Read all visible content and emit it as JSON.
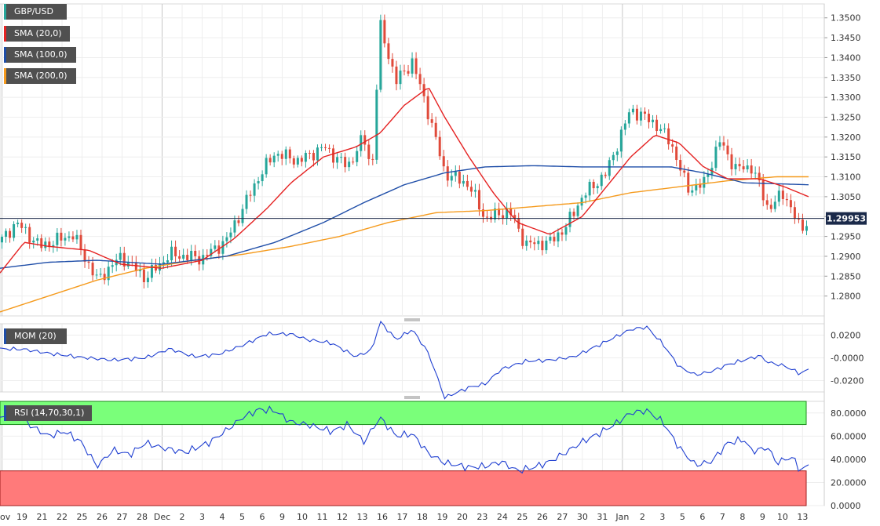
{
  "chart_data": {
    "type": "candlestick",
    "symbol": "GBP/USD",
    "price_panel": {
      "ylim": [
        1.275,
        1.3535
      ],
      "ticks": [
        "1.2800",
        "1.2850",
        "1.2900",
        "1.2950",
        "1.3000",
        "1.3050",
        "1.3100",
        "1.3150",
        "1.3200",
        "1.3250",
        "1.3300",
        "1.3350",
        "1.3400",
        "1.3450",
        "1.3500"
      ],
      "last_price": "1.29953",
      "legend": [
        {
          "label": "GBP/USD",
          "color": "#26a69a"
        },
        {
          "label": "SMA (20,0)",
          "color": "#e52222"
        },
        {
          "label": "SMA (100,0)",
          "color": "#1f4ea8"
        },
        {
          "label": "SMA (200,0)",
          "color": "#f59a1c"
        }
      ],
      "close_keypoints": [
        [
          0,
          1.2935
        ],
        [
          0.02,
          1.2985
        ],
        [
          0.05,
          1.2925
        ],
        [
          0.09,
          1.2955
        ],
        [
          0.12,
          1.284
        ],
        [
          0.15,
          1.29
        ],
        [
          0.18,
          1.2845
        ],
        [
          0.21,
          1.2905
        ],
        [
          0.25,
          1.2895
        ],
        [
          0.28,
          1.294
        ],
        [
          0.3,
          1.302
        ],
        [
          0.32,
          1.31
        ],
        [
          0.34,
          1.316
        ],
        [
          0.37,
          1.314
        ],
        [
          0.4,
          1.3175
        ],
        [
          0.43,
          1.3125
        ],
        [
          0.45,
          1.32
        ],
        [
          0.46,
          1.311
        ],
        [
          0.47,
          1.348
        ],
        [
          0.49,
          1.334
        ],
        [
          0.51,
          1.339
        ],
        [
          0.53,
          1.326
        ],
        [
          0.55,
          1.311
        ],
        [
          0.58,
          1.308
        ],
        [
          0.6,
          1.2995
        ],
        [
          0.63,
          1.3015
        ],
        [
          0.65,
          1.293
        ],
        [
          0.68,
          1.2935
        ],
        [
          0.7,
          1.2975
        ],
        [
          0.72,
          1.305
        ],
        [
          0.75,
          1.311
        ],
        [
          0.78,
          1.327
        ],
        [
          0.81,
          1.3235
        ],
        [
          0.83,
          1.3185
        ],
        [
          0.85,
          1.307
        ],
        [
          0.87,
          1.308
        ],
        [
          0.89,
          1.319
        ],
        [
          0.91,
          1.312
        ],
        [
          0.93,
          1.3125
        ],
        [
          0.95,
          1.302
        ],
        [
          0.97,
          1.306
        ],
        [
          0.99,
          1.2965
        ],
        [
          1.0,
          1.2995
        ]
      ],
      "sma20_keypoints": [
        [
          0,
          1.2858
        ],
        [
          0.03,
          1.2935
        ],
        [
          0.06,
          1.2925
        ],
        [
          0.11,
          1.2915
        ],
        [
          0.15,
          1.288
        ],
        [
          0.2,
          1.287
        ],
        [
          0.25,
          1.289
        ],
        [
          0.29,
          1.2945
        ],
        [
          0.33,
          1.302
        ],
        [
          0.36,
          1.3085
        ],
        [
          0.4,
          1.315
        ],
        [
          0.44,
          1.3175
        ],
        [
          0.47,
          1.321
        ],
        [
          0.5,
          1.328
        ],
        [
          0.53,
          1.3325
        ],
        [
          0.55,
          1.325
        ],
        [
          0.58,
          1.315
        ],
        [
          0.61,
          1.306
        ],
        [
          0.64,
          1.2985
        ],
        [
          0.68,
          1.2955
        ],
        [
          0.72,
          1.3
        ],
        [
          0.75,
          1.3075
        ],
        [
          0.78,
          1.315
        ],
        [
          0.81,
          1.3205
        ],
        [
          0.84,
          1.3185
        ],
        [
          0.87,
          1.3125
        ],
        [
          0.9,
          1.3095
        ],
        [
          0.94,
          1.3095
        ],
        [
          0.97,
          1.3075
        ],
        [
          1.0,
          1.305
        ]
      ],
      "sma100_keypoints": [
        [
          0,
          1.287
        ],
        [
          0.06,
          1.2885
        ],
        [
          0.12,
          1.289
        ],
        [
          0.2,
          1.288
        ],
        [
          0.28,
          1.29
        ],
        [
          0.34,
          1.2935
        ],
        [
          0.4,
          1.2985
        ],
        [
          0.45,
          1.3035
        ],
        [
          0.5,
          1.308
        ],
        [
          0.55,
          1.311
        ],
        [
          0.6,
          1.3125
        ],
        [
          0.66,
          1.3128
        ],
        [
          0.72,
          1.3125
        ],
        [
          0.78,
          1.3125
        ],
        [
          0.83,
          1.3125
        ],
        [
          0.87,
          1.311
        ],
        [
          0.92,
          1.3085
        ],
        [
          1.0,
          1.308
        ]
      ],
      "sma200_keypoints": [
        [
          0,
          1.276
        ],
        [
          0.06,
          1.28
        ],
        [
          0.12,
          1.284
        ],
        [
          0.18,
          1.287
        ],
        [
          0.24,
          1.289
        ],
        [
          0.3,
          1.2905
        ],
        [
          0.36,
          1.2925
        ],
        [
          0.42,
          1.295
        ],
        [
          0.48,
          1.2985
        ],
        [
          0.54,
          1.301
        ],
        [
          0.6,
          1.3015
        ],
        [
          0.66,
          1.3025
        ],
        [
          0.72,
          1.3035
        ],
        [
          0.78,
          1.306
        ],
        [
          0.84,
          1.3075
        ],
        [
          0.9,
          1.309
        ],
        [
          0.96,
          1.31
        ],
        [
          1.0,
          1.31
        ]
      ]
    },
    "mom_panel": {
      "label": "MOM (20)",
      "ylim": [
        -0.03,
        0.03
      ],
      "ticks": [
        "0.0200",
        "-0.0000",
        "-0.0200"
      ],
      "keypoints": [
        [
          0,
          0.008
        ],
        [
          0.03,
          0.0075
        ],
        [
          0.06,
          0.004
        ],
        [
          0.1,
          0.0005
        ],
        [
          0.14,
          -0.002
        ],
        [
          0.18,
          0.0
        ],
        [
          0.21,
          0.008
        ],
        [
          0.24,
          0.001
        ],
        [
          0.27,
          0.003
        ],
        [
          0.3,
          0.011
        ],
        [
          0.33,
          0.021
        ],
        [
          0.36,
          0.021
        ],
        [
          0.38,
          0.016
        ],
        [
          0.41,
          0.013
        ],
        [
          0.44,
          0.001
        ],
        [
          0.46,
          0.007
        ],
        [
          0.47,
          0.032
        ],
        [
          0.49,
          0.016
        ],
        [
          0.51,
          0.025
        ],
        [
          0.53,
          0.004
        ],
        [
          0.55,
          -0.035
        ],
        [
          0.58,
          -0.026
        ],
        [
          0.6,
          -0.023
        ],
        [
          0.62,
          -0.01
        ],
        [
          0.65,
          -0.003
        ],
        [
          0.68,
          -0.002
        ],
        [
          0.71,
          0.001
        ],
        [
          0.74,
          0.011
        ],
        [
          0.76,
          0.018
        ],
        [
          0.78,
          0.025
        ],
        [
          0.8,
          0.027
        ],
        [
          0.82,
          0.012
        ],
        [
          0.84,
          -0.008
        ],
        [
          0.86,
          -0.015
        ],
        [
          0.88,
          -0.012
        ],
        [
          0.9,
          -0.006
        ],
        [
          0.92,
          -0.002
        ],
        [
          0.94,
          0.002
        ],
        [
          0.95,
          -0.004
        ],
        [
          0.97,
          -0.007
        ],
        [
          0.99,
          -0.014
        ],
        [
          1.0,
          -0.01
        ]
      ]
    },
    "rsi_panel": {
      "label": "RSI (14,70,30,1)",
      "ylim": [
        0,
        90
      ],
      "overbought": 70,
      "oversold": 30,
      "ticks": [
        "80.0000",
        "60.0000",
        "40.0000",
        "20.0000",
        "0.0000"
      ],
      "keypoints": [
        [
          0,
          75
        ],
        [
          0.02,
          80
        ],
        [
          0.04,
          68
        ],
        [
          0.06,
          60
        ],
        [
          0.08,
          64
        ],
        [
          0.1,
          55
        ],
        [
          0.12,
          34
        ],
        [
          0.14,
          48
        ],
        [
          0.16,
          44
        ],
        [
          0.18,
          54
        ],
        [
          0.2,
          50
        ],
        [
          0.23,
          46
        ],
        [
          0.26,
          55
        ],
        [
          0.28,
          65
        ],
        [
          0.3,
          76
        ],
        [
          0.32,
          83
        ],
        [
          0.34,
          82
        ],
        [
          0.36,
          72
        ],
        [
          0.38,
          70
        ],
        [
          0.41,
          64
        ],
        [
          0.43,
          70
        ],
        [
          0.45,
          55
        ],
        [
          0.47,
          76
        ],
        [
          0.49,
          60
        ],
        [
          0.51,
          62
        ],
        [
          0.53,
          45
        ],
        [
          0.55,
          37
        ],
        [
          0.58,
          33
        ],
        [
          0.6,
          34
        ],
        [
          0.62,
          38
        ],
        [
          0.64,
          30
        ],
        [
          0.66,
          33
        ],
        [
          0.68,
          38
        ],
        [
          0.7,
          46
        ],
        [
          0.72,
          55
        ],
        [
          0.74,
          62
        ],
        [
          0.76,
          70
        ],
        [
          0.78,
          80
        ],
        [
          0.8,
          82
        ],
        [
          0.82,
          72
        ],
        [
          0.84,
          50
        ],
        [
          0.86,
          35
        ],
        [
          0.88,
          38
        ],
        [
          0.9,
          54
        ],
        [
          0.92,
          57
        ],
        [
          0.93,
          47
        ],
        [
          0.95,
          50
        ],
        [
          0.96,
          37
        ],
        [
          0.98,
          42
        ],
        [
          0.99,
          30
        ],
        [
          1.0,
          35
        ]
      ]
    },
    "x_ticks": [
      "Nov",
      "19",
      "21",
      "22",
      "25",
      "26",
      "27",
      "28",
      "Dec",
      "2",
      "3",
      "4",
      "5",
      "6",
      "9",
      "10",
      "11",
      "12",
      "13",
      "16",
      "17",
      "18",
      "19",
      "20",
      "23",
      "24",
      "25",
      "26",
      "27",
      "30",
      "31",
      "Jan",
      "2",
      "3",
      "5",
      "6",
      "7",
      "8",
      "9",
      "10",
      "13"
    ]
  }
}
